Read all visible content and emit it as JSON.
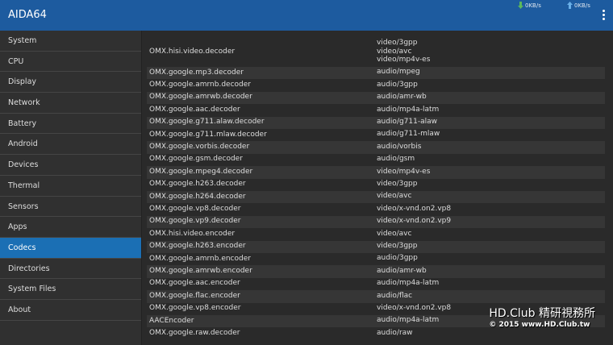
{
  "header": {
    "title": "AIDA64",
    "download": "0KB/s",
    "upload": "0KB/s"
  },
  "sidebar": {
    "items": [
      "System",
      "CPU",
      "Display",
      "Network",
      "Battery",
      "Android",
      "Devices",
      "Thermal",
      "Sensors",
      "Apps",
      "Codecs",
      "Directories",
      "System Files",
      "About"
    ],
    "selected": "Codecs"
  },
  "codecs": {
    "rows": [
      {
        "name": "OMX.hisi.video.decoder",
        "types": [
          "video/3gpp",
          "video/avc",
          "video/mp4v-es"
        ]
      },
      {
        "name": "OMX.google.mp3.decoder",
        "types": [
          "audio/mpeg"
        ]
      },
      {
        "name": "OMX.google.amrnb.decoder",
        "types": [
          "audio/3gpp"
        ]
      },
      {
        "name": "OMX.google.amrwb.decoder",
        "types": [
          "audio/amr-wb"
        ]
      },
      {
        "name": "OMX.google.aac.decoder",
        "types": [
          "audio/mp4a-latm"
        ]
      },
      {
        "name": "OMX.google.g711.alaw.decoder",
        "types": [
          "audio/g711-alaw"
        ]
      },
      {
        "name": "OMX.google.g711.mlaw.decoder",
        "types": [
          "audio/g711-mlaw"
        ]
      },
      {
        "name": "OMX.google.vorbis.decoder",
        "types": [
          "audio/vorbis"
        ]
      },
      {
        "name": "OMX.google.gsm.decoder",
        "types": [
          "audio/gsm"
        ]
      },
      {
        "name": "OMX.google.mpeg4.decoder",
        "types": [
          "video/mp4v-es"
        ]
      },
      {
        "name": "OMX.google.h263.decoder",
        "types": [
          "video/3gpp"
        ]
      },
      {
        "name": "OMX.google.h264.decoder",
        "types": [
          "video/avc"
        ]
      },
      {
        "name": "OMX.google.vp8.decoder",
        "types": [
          "video/x-vnd.on2.vp8"
        ]
      },
      {
        "name": "OMX.google.vp9.decoder",
        "types": [
          "video/x-vnd.on2.vp9"
        ]
      },
      {
        "name": "OMX.hisi.video.encoder",
        "types": [
          "video/avc"
        ]
      },
      {
        "name": "OMX.google.h263.encoder",
        "types": [
          "video/3gpp"
        ]
      },
      {
        "name": "OMX.google.amrnb.encoder",
        "types": [
          "audio/3gpp"
        ]
      },
      {
        "name": "OMX.google.amrwb.encoder",
        "types": [
          "audio/amr-wb"
        ]
      },
      {
        "name": "OMX.google.aac.encoder",
        "types": [
          "audio/mp4a-latm"
        ]
      },
      {
        "name": "OMX.google.flac.encoder",
        "types": [
          "audio/flac"
        ]
      },
      {
        "name": "OMX.google.vp8.encoder",
        "types": [
          "video/x-vnd.on2.vp8"
        ]
      },
      {
        "name": "AACEncoder",
        "types": [
          "audio/mp4a-latm"
        ]
      },
      {
        "name": "OMX.google.raw.decoder",
        "types": [
          "audio/raw"
        ]
      }
    ]
  },
  "watermark": {
    "line1": "HD.Club 精研視務所",
    "line2": "© 2015  www.HD.Club.tw"
  }
}
